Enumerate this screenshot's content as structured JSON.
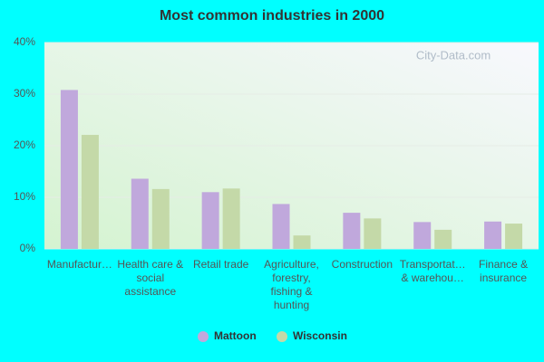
{
  "chart_data": {
    "type": "bar",
    "title": "Most common industries in 2000",
    "watermark": "City-Data.com",
    "categories": [
      "Manufactur…",
      "Health care & social assistance",
      "Retail trade",
      "Agriculture, forestry, fishing & hunting",
      "Construction",
      "Transportat… & warehou…",
      "Finance & insurance"
    ],
    "series": [
      {
        "name": "Mattoon",
        "color": "#c0a8dc",
        "values": [
          30.8,
          13.6,
          11.0,
          8.7,
          7.0,
          5.2,
          5.3
        ]
      },
      {
        "name": "Wisconsin",
        "color": "#c4d9a8",
        "values": [
          22.1,
          11.6,
          11.7,
          2.6,
          5.9,
          3.7,
          4.9
        ]
      }
    ],
    "ylim": [
      0,
      40
    ],
    "yticks": [
      {
        "value": 0,
        "label": "0%"
      },
      {
        "value": 10,
        "label": "10%"
      },
      {
        "value": 20,
        "label": "20%"
      },
      {
        "value": 30,
        "label": "30%"
      },
      {
        "value": 40,
        "label": "40%"
      }
    ],
    "grid": true
  }
}
